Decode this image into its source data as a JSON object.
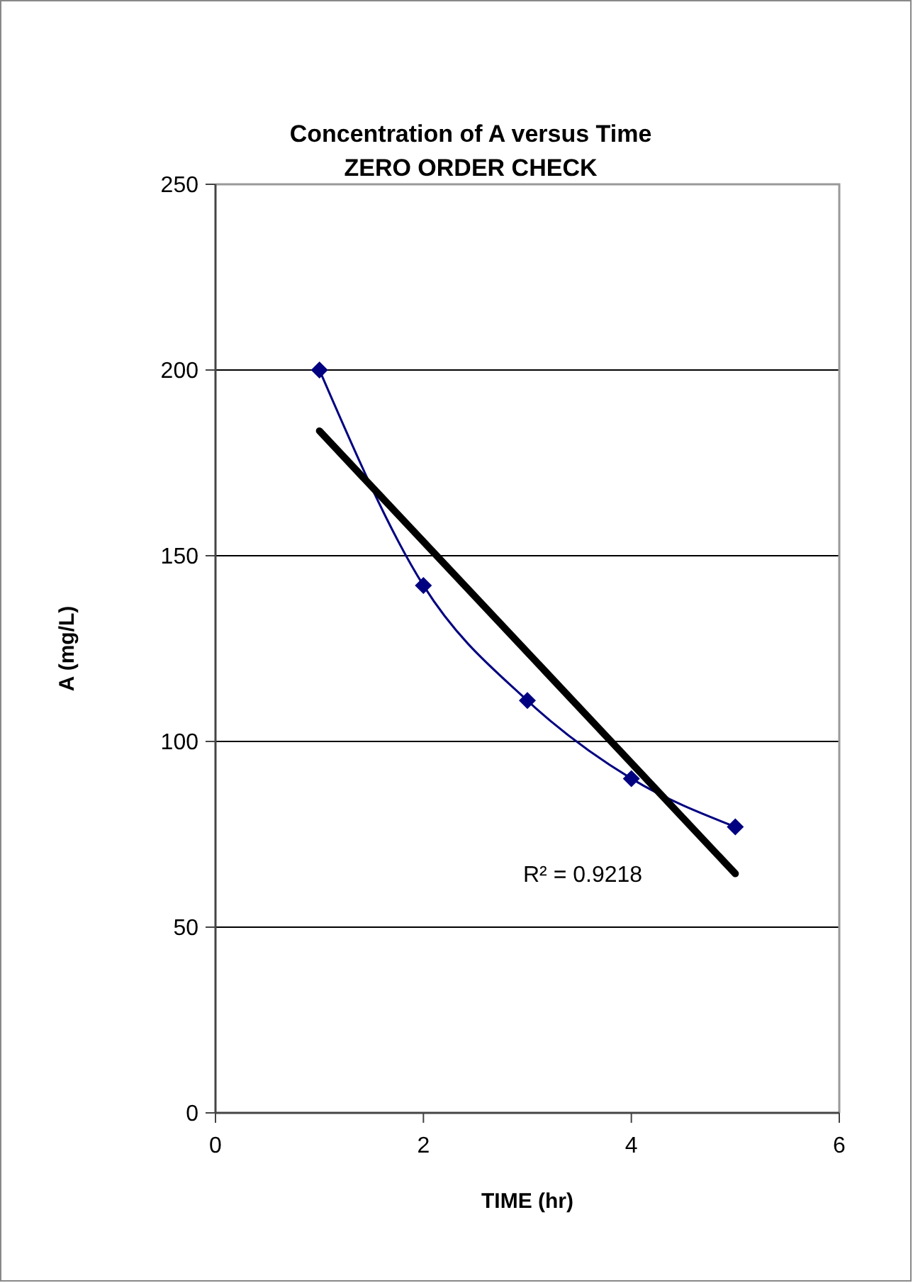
{
  "chart_data": {
    "type": "line",
    "title": "Concentration of A versus Time",
    "subtitle": "ZERO ORDER CHECK",
    "xlabel": "TIME (hr)",
    "ylabel": "A (mg/L)",
    "xlim": [
      0,
      6
    ],
    "xticks": [
      0,
      2,
      4,
      6
    ],
    "ylim": [
      0,
      250
    ],
    "yticks": [
      0,
      50,
      100,
      150,
      200,
      250
    ],
    "grid": "y",
    "marker": "diamond",
    "series": [
      {
        "color": "#000080",
        "x": [
          1,
          2,
          3,
          4,
          5
        ],
        "values": [
          200,
          142,
          111,
          90,
          77
        ]
      },
      {
        "type": "line",
        "color": "#000000",
        "x": [
          1,
          5
        ],
        "values": [
          183.6,
          64.4
        ],
        "marker": "none"
      }
    ],
    "annotations": [
      "R² = 0.9218"
    ]
  }
}
